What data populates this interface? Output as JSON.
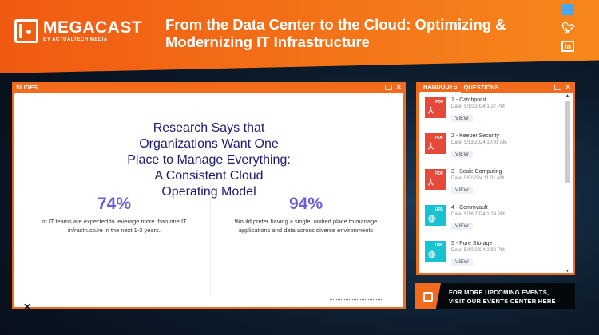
{
  "header": {
    "brand": "MEGACAST",
    "brand_sub": "BY ACTUALTECH MEDIA",
    "title": "From the Data Center to the Cloud: Optimizing & Modernizing IT Infrastructure",
    "social": [
      "facebook-icon",
      "twitter-icon",
      "linkedin-icon"
    ]
  },
  "slides": {
    "label": "SLIDES",
    "slide_title": "Research Says that Organizations Want One Place to Manage Everything: A Consistent Cloud Operating Model",
    "stats": [
      {
        "value": "74%",
        "text": "of IT teams are expected to leverage more than one IT infrastructure in the next 1-3 years."
      },
      {
        "value": "94%",
        "text": "Would prefer having a single, unified place to manage applications and data across diverse environments"
      }
    ]
  },
  "handouts": {
    "tabs": [
      "HANDOUTS",
      "QUESTIONS"
    ],
    "items": [
      {
        "name": "1 - Catchpoint",
        "date": "Date: 5/10/2024 1:27 PM",
        "type": "PDF",
        "view": "VIEW"
      },
      {
        "name": "2 - Keeper Security",
        "date": "Date: 5/13/2024 10:41 AM",
        "type": "PDF",
        "view": "VIEW"
      },
      {
        "name": "3 - Scale Computing",
        "date": "Date: 5/9/2024 11:31 AM",
        "type": "PDF",
        "view": "VIEW"
      },
      {
        "name": "4 - Commvault",
        "date": "Date: 5/16/2024 1:14 PM",
        "type": "URL",
        "view": "VIEW"
      },
      {
        "name": "5 - Pure Storage",
        "date": "Date: 5/10/2024 2:30 PM",
        "type": "URL",
        "view": "VIEW"
      }
    ]
  },
  "banner": {
    "line1": "FOR MORE UPCOMING EVENTS,",
    "line2": "VISIT OUR EVENTS CENTER HERE"
  },
  "colors": {
    "accent": "#f26a1b",
    "slide_title": "#1d1b6e",
    "stat": "#6b5ed8",
    "pdf": "#e4493a",
    "url": "#18c2d0"
  }
}
